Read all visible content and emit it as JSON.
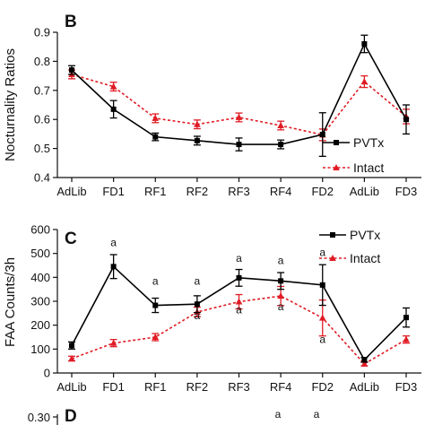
{
  "chart_data": [
    {
      "type": "line",
      "panel_label": "B",
      "ylabel": "Nocturnality Ratios",
      "ylim": [
        0.4,
        0.9
      ],
      "yticks": [
        "0.4",
        "0.5",
        "0.6",
        "0.7",
        "0.8",
        "0.9"
      ],
      "categories": [
        "AdLib",
        "FD1",
        "RF1",
        "RF2",
        "RF3",
        "RF4",
        "FD2",
        "AdLib",
        "FD3"
      ],
      "legend_position": "bottom-right",
      "series": [
        {
          "name": "PVTx",
          "color": "#000000",
          "style": "solid",
          "marker": "square",
          "values": [
            0.77,
            0.635,
            0.54,
            0.527,
            0.514,
            0.514,
            0.548,
            0.86,
            0.6
          ],
          "errors": [
            0.015,
            0.03,
            0.013,
            0.015,
            0.022,
            0.015,
            0.075,
            0.03,
            0.05
          ]
        },
        {
          "name": "Intact",
          "color": "#e01b24",
          "style": "dotted",
          "marker": "triangle",
          "values": [
            0.755,
            0.713,
            0.604,
            0.583,
            0.607,
            0.579,
            0.547,
            0.73,
            0.61
          ],
          "errors": [
            0.015,
            0.015,
            0.015,
            0.015,
            0.015,
            0.015,
            0.02,
            0.02,
            0.025
          ]
        }
      ],
      "annotations": []
    },
    {
      "type": "line",
      "panel_label": "C",
      "ylabel": "FAA Counts/3h",
      "ylim": [
        0,
        600
      ],
      "yticks": [
        "0",
        "100",
        "200",
        "300",
        "400",
        "500",
        "600"
      ],
      "categories": [
        "AdLib",
        "FD1",
        "RF1",
        "RF2",
        "RF3",
        "RF4",
        "FD2",
        "AdLib",
        "FD3"
      ],
      "legend_position": "top-right",
      "series": [
        {
          "name": "PVTx",
          "color": "#000000",
          "style": "solid",
          "marker": "square",
          "values": [
            115,
            445,
            283,
            288,
            398,
            385,
            368,
            55,
            232
          ],
          "errors": [
            15,
            50,
            30,
            35,
            35,
            35,
            85,
            10,
            40
          ]
        },
        {
          "name": "Intact",
          "color": "#e01b24",
          "style": "dotted",
          "marker": "triangle",
          "values": [
            60,
            125,
            150,
            255,
            298,
            322,
            230,
            38,
            140
          ],
          "errors": [
            10,
            15,
            15,
            20,
            30,
            40,
            75,
            8,
            15
          ]
        }
      ],
      "annotations": [
        {
          "category": "FD1",
          "value": 530,
          "text": "a"
        },
        {
          "category": "RF1",
          "value": 370,
          "text": "a"
        },
        {
          "category": "RF2",
          "value": 370,
          "text": "a"
        },
        {
          "category": "RF3",
          "value": 465,
          "text": "a"
        },
        {
          "category": "RF4",
          "value": 455,
          "text": "a"
        },
        {
          "category": "FD2",
          "value": 490,
          "text": "a"
        },
        {
          "category": "RF2",
          "value": 225,
          "text": "a"
        },
        {
          "category": "RF3",
          "value": 250,
          "text": "a"
        },
        {
          "category": "RF4",
          "value": 262,
          "text": "a"
        },
        {
          "category": "FD2",
          "value": 125,
          "text": "a"
        }
      ]
    },
    {
      "type": "line",
      "panel_label": "D",
      "yticks": [
        "0.30"
      ],
      "annotations": [
        "a",
        "a"
      ],
      "partial": true
    }
  ]
}
